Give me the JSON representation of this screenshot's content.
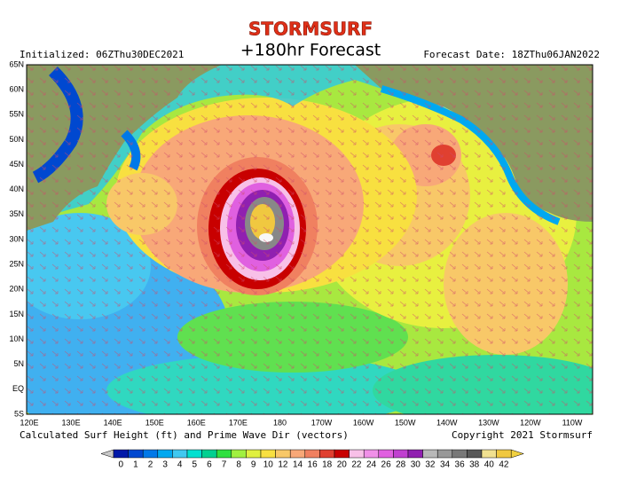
{
  "header": {
    "brand": "STORMSURF",
    "title": "+180hr Forecast",
    "initialized": "Initialized: 06ZThu30DEC2021",
    "forecast_date": "Forecast Date: 18ZThu06JAN2022"
  },
  "map": {
    "lat_labels": [
      "65N",
      "60N",
      "55N",
      "50N",
      "45N",
      "40N",
      "35N",
      "30N",
      "25N",
      "20N",
      "15N",
      "10N",
      "5N",
      "EQ",
      "5S"
    ],
    "lon_labels": [
      "120E",
      "130E",
      "140E",
      "150E",
      "160E",
      "170E",
      "180",
      "170W",
      "160W",
      "150W",
      "140W",
      "130W",
      "120W",
      "110W"
    ]
  },
  "footer": {
    "caption": "Calculated Surf Height (ft) and Prime Wave Dir (vectors)",
    "copyright": "Copyright 2021 Stormsurf"
  },
  "legend": {
    "values": [
      0,
      1,
      2,
      3,
      4,
      5,
      6,
      7,
      8,
      9,
      10,
      12,
      14,
      16,
      18,
      20,
      22,
      24,
      26,
      28,
      30,
      32,
      34,
      36,
      38,
      40,
      42
    ],
    "colors": [
      "#0018a8",
      "#0048d0",
      "#0078e8",
      "#00a8f0",
      "#40c8f0",
      "#00e0d0",
      "#00d090",
      "#30e040",
      "#a0f040",
      "#e0f040",
      "#f8e040",
      "#f8c868",
      "#f8a878",
      "#f08060",
      "#e04030",
      "#c80000",
      "#f8c0e8",
      "#f090e8",
      "#e060e0",
      "#c040d0",
      "#9020b0",
      "#b8b8b8",
      "#989898",
      "#787878",
      "#585858",
      "#f0e090",
      "#f0c840"
    ]
  }
}
